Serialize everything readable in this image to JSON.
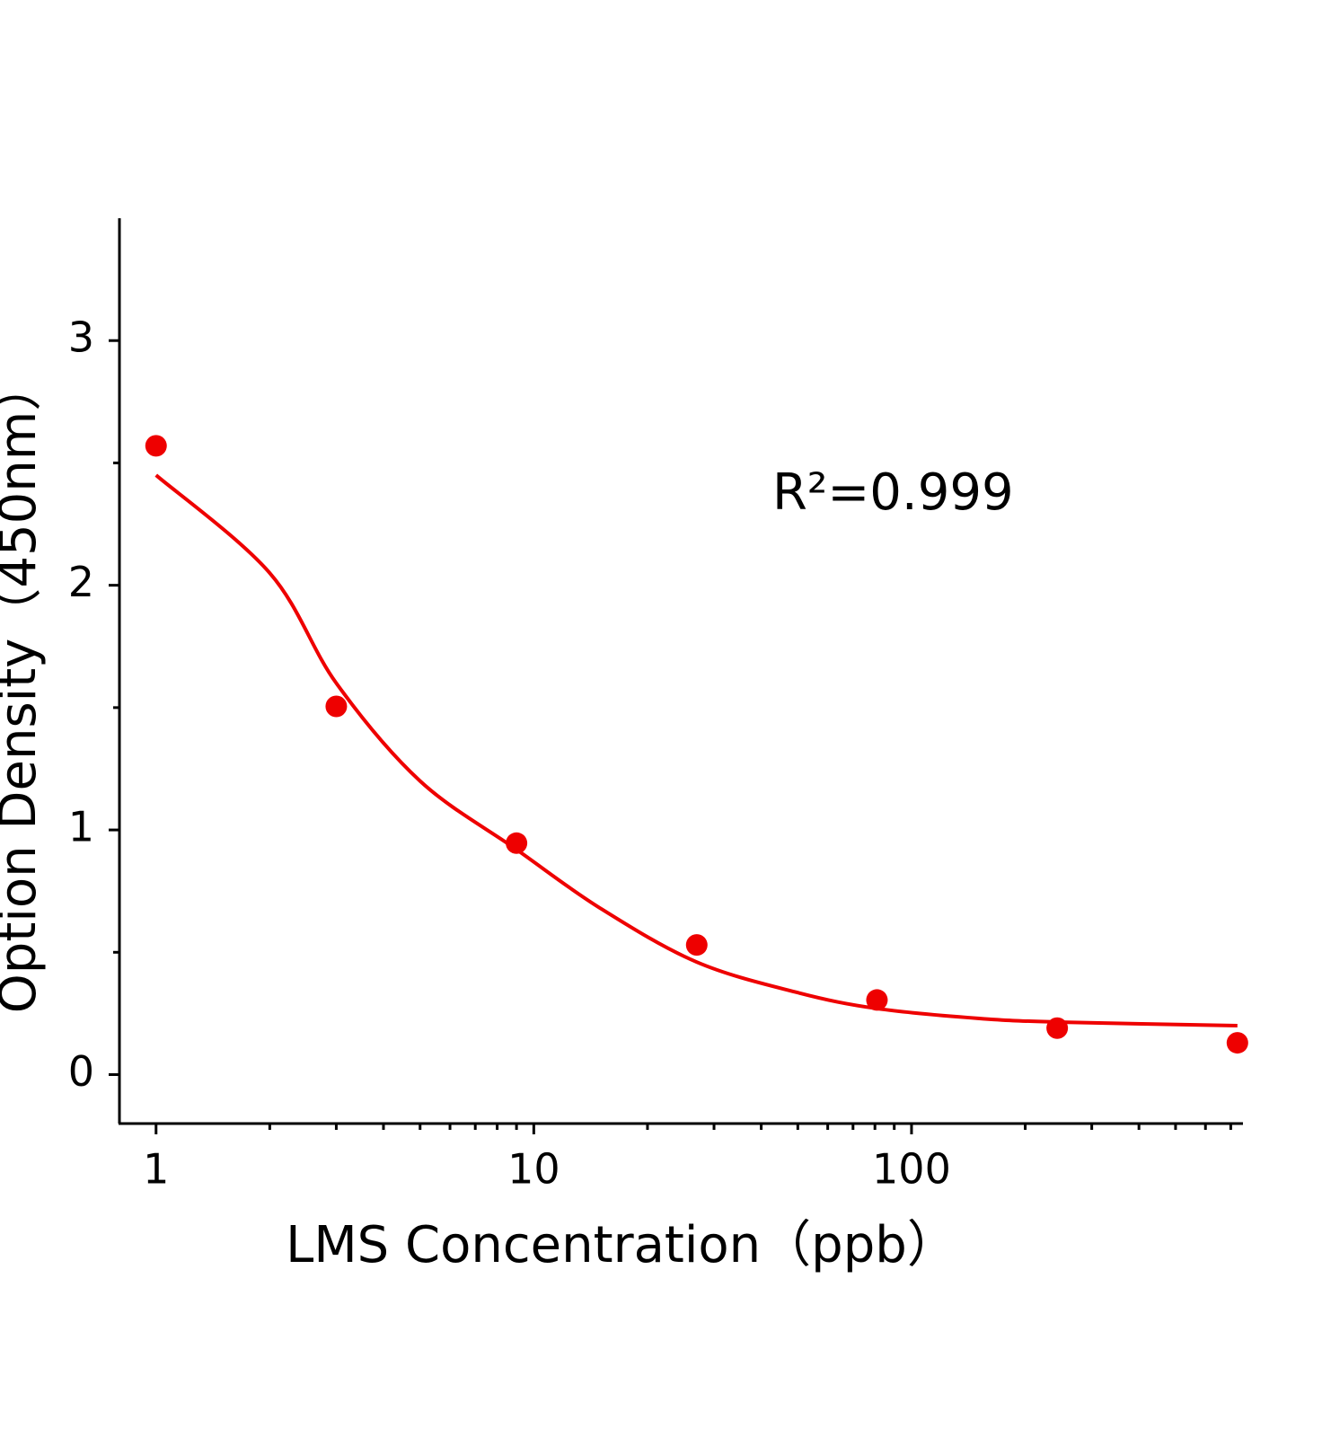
{
  "chart_data": {
    "type": "scatter",
    "xlabel": "LMS Concentration（ppb）",
    "ylabel": "Option Density（450nm）",
    "annotation": "R²=0.999",
    "xscale": "log",
    "xlim": [
      0.8,
      750
    ],
    "xticks": [
      1,
      10,
      100
    ],
    "xminor_ticks": [
      2,
      3,
      4,
      5,
      6,
      7,
      8,
      9,
      20,
      30,
      40,
      50,
      60,
      70,
      80,
      90,
      200,
      300,
      400,
      500,
      600,
      700
    ],
    "ylim": [
      -0.2,
      3.5
    ],
    "yticks": [
      0,
      1,
      2,
      3
    ],
    "yminor_ticks": [
      0.5,
      1.5,
      2.5
    ],
    "series": [
      {
        "type": "scatter",
        "color": "#ee0000",
        "x": [
          1,
          3,
          9,
          27,
          81,
          243,
          729
        ],
        "values": [
          2.57,
          1.505,
          0.946,
          0.53,
          0.305,
          0.19,
          0.13
        ]
      },
      {
        "type": "line",
        "color": "#ee0000",
        "x": [
          1,
          2,
          3,
          5,
          9,
          15,
          27,
          50,
          81,
          150,
          243,
          729
        ],
        "values": [
          2.45,
          2.05,
          1.6,
          1.2,
          0.92,
          0.68,
          0.46,
          0.335,
          0.27,
          0.23,
          0.215,
          0.2
        ]
      }
    ]
  }
}
